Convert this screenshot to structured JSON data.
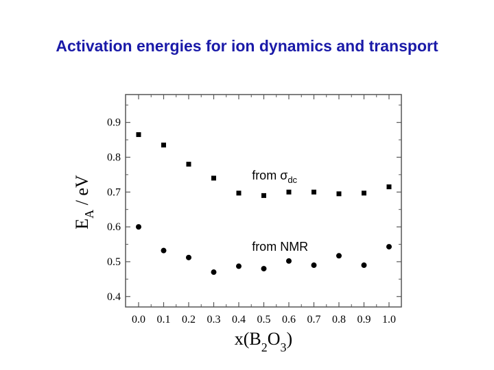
{
  "title": "Activation energies for ion dynamics and transport",
  "chart_data": {
    "type": "scatter",
    "title": "Activation energies for ion dynamics and transport",
    "xlabel": {
      "main": "x(B",
      "sub1": "2",
      "mid": "O",
      "sub2": "3",
      "end": ")"
    },
    "ylabel": {
      "main": "E",
      "sub": "A",
      "end": " / eV"
    },
    "xlim": [
      0.0,
      1.0
    ],
    "ylim": [
      0.37,
      0.98
    ],
    "x_ticks": [
      "0.0",
      "0.1",
      "0.2",
      "0.3",
      "0.4",
      "0.5",
      "0.6",
      "0.7",
      "0.8",
      "0.9",
      "1.0"
    ],
    "y_ticks": [
      "0.4",
      "0.5",
      "0.6",
      "0.7",
      "0.8",
      "0.9"
    ],
    "series": [
      {
        "marker": "square",
        "x": [
          0.0,
          0.1,
          0.2,
          0.3,
          0.4,
          0.5,
          0.6,
          0.7,
          0.8,
          0.9,
          1.0
        ],
        "y": [
          0.865,
          0.835,
          0.78,
          0.74,
          0.697,
          0.69,
          0.7,
          0.7,
          0.695,
          0.697,
          0.715
        ]
      },
      {
        "marker": "circle",
        "x": [
          0.0,
          0.1,
          0.2,
          0.3,
          0.4,
          0.5,
          0.6,
          0.7,
          0.8,
          0.9,
          1.0
        ],
        "y": [
          0.6,
          0.532,
          0.512,
          0.47,
          0.487,
          0.48,
          0.502,
          0.49,
          0.517,
          0.49,
          0.543
        ]
      }
    ],
    "annotations": [
      {
        "id": "sigma",
        "text_main": "from σ",
        "text_sub": "dc",
        "x": 0.48,
        "y": 0.74
      },
      {
        "id": "nmr",
        "text_main": "from NMR",
        "x": 0.48,
        "y": 0.535
      }
    ],
    "grid": false
  }
}
